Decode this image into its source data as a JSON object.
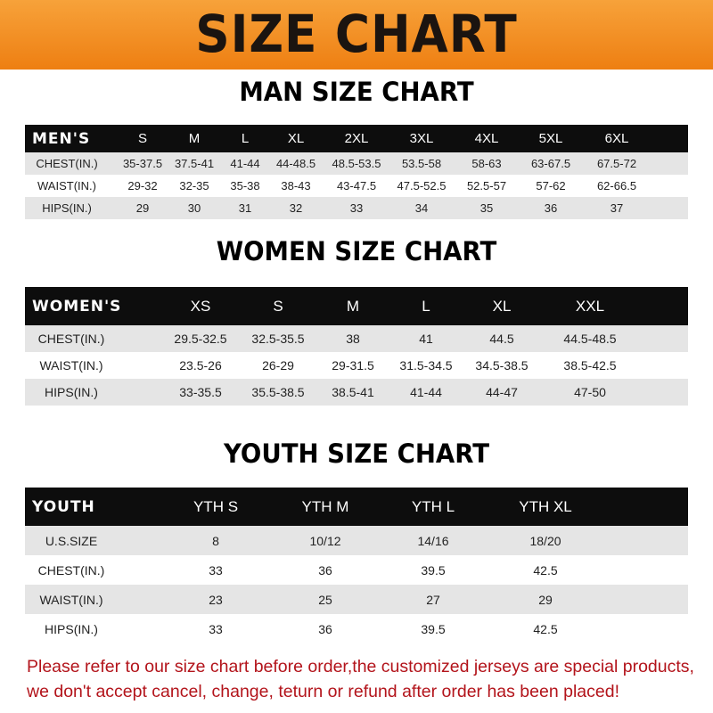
{
  "header": {
    "title": "SIZE CHART",
    "color": "#ee7f12"
  },
  "men": {
    "title": "MAN SIZE CHART",
    "corner": "MEN'S",
    "sizes": [
      "S",
      "M",
      "L",
      "XL",
      "2XL",
      "3XL",
      "4XL",
      "5XL",
      "6XL"
    ],
    "rows": [
      {
        "label": "CHEST(IN.)",
        "values": [
          "35-37.5",
          "37.5-41",
          "41-44",
          "44-48.5",
          "48.5-53.5",
          "53.5-58",
          "58-63",
          "63-67.5",
          "67.5-72"
        ]
      },
      {
        "label": "WAIST(IN.)",
        "values": [
          "29-32",
          "32-35",
          "35-38",
          "38-43",
          "43-47.5",
          "47.5-52.5",
          "52.5-57",
          "57-62",
          "62-66.5"
        ]
      },
      {
        "label": "HIPS(IN.)",
        "values": [
          "29",
          "30",
          "31",
          "32",
          "33",
          "34",
          "35",
          "36",
          "37"
        ]
      }
    ]
  },
  "women": {
    "title": "WOMEN SIZE CHART",
    "corner": "WOMEN'S",
    "sizes": [
      "XS",
      "S",
      "M",
      "L",
      "XL",
      "XXL"
    ],
    "rows": [
      {
        "label": "CHEST(IN.)",
        "values": [
          "29.5-32.5",
          "32.5-35.5",
          "38",
          "41",
          "44.5",
          "44.5-48.5"
        ]
      },
      {
        "label": "WAIST(IN.)",
        "values": [
          "23.5-26",
          "26-29",
          "29-31.5",
          "31.5-34.5",
          "34.5-38.5",
          "38.5-42.5"
        ]
      },
      {
        "label": "HIPS(IN.)",
        "values": [
          "33-35.5",
          "35.5-38.5",
          "38.5-41",
          "41-44",
          "44-47",
          "47-50"
        ]
      }
    ]
  },
  "youth": {
    "title": "YOUTH SIZE CHART",
    "corner": "YOUTH",
    "sizes": [
      "YTH S",
      "YTH M",
      "YTH L",
      "YTH XL"
    ],
    "rows": [
      {
        "label": "U.S.SIZE",
        "values": [
          "8",
          "10/12",
          "14/16",
          "18/20"
        ]
      },
      {
        "label": "CHEST(IN.)",
        "values": [
          "33",
          "36",
          "39.5",
          "42.5"
        ]
      },
      {
        "label": "WAIST(IN.)",
        "values": [
          "23",
          "25",
          "27",
          "29"
        ]
      },
      {
        "label": "HIPS(IN.)",
        "values": [
          "33",
          "36",
          "39.5",
          "42.5"
        ]
      }
    ]
  },
  "notice": {
    "line1": "Please refer to our size chart before order,the customized jerseys are special products,",
    "line2": "we don't accept cancel, change, teturn or refund after order has been placed!",
    "color": "#b3141b"
  }
}
